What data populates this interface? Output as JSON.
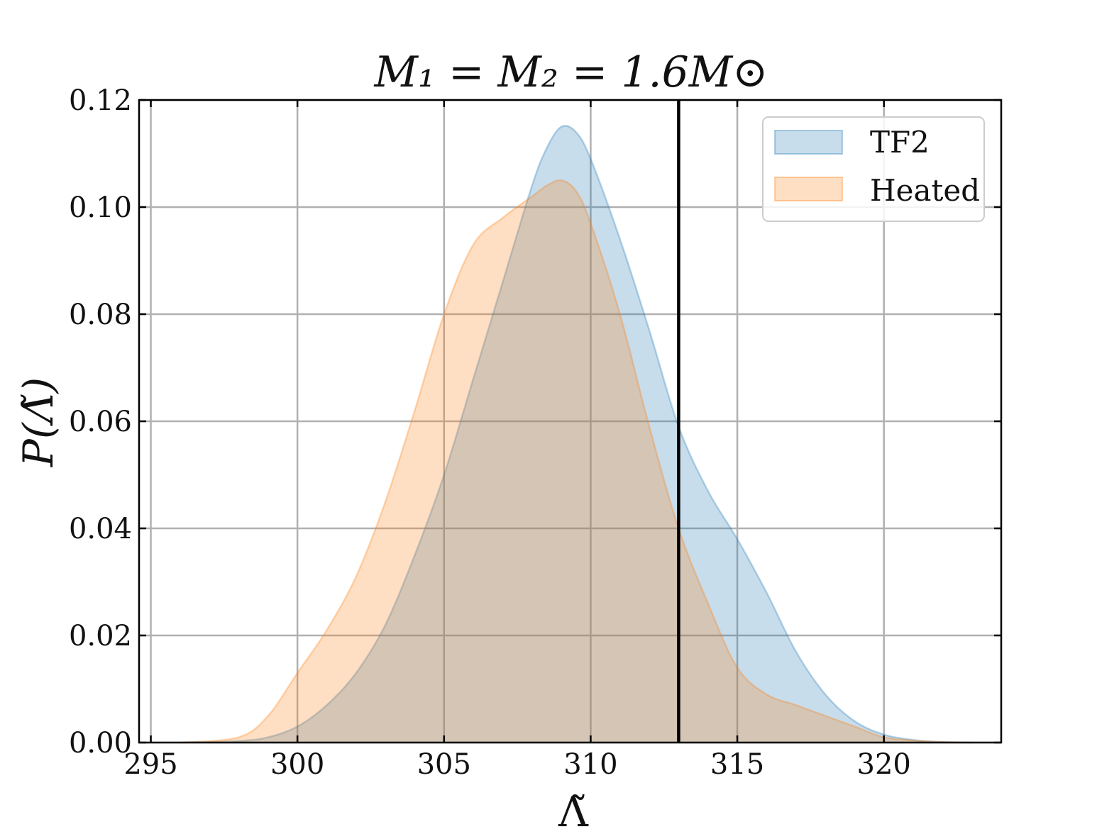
{
  "chart_data": {
    "type": "area",
    "title": "M₁ = M₂ = 1.6M⊙",
    "xlabel": "Λ̃",
    "ylabel": "P(Λ̃)",
    "xlim": [
      294.6,
      324
    ],
    "ylim": [
      0,
      0.12
    ],
    "x_ticks": [
      295,
      300,
      305,
      310,
      315,
      320
    ],
    "y_ticks": [
      0.0,
      0.02,
      0.04,
      0.06,
      0.08,
      0.1,
      0.12
    ],
    "x_tick_labels": [
      "295",
      "300",
      "305",
      "310",
      "315",
      "320"
    ],
    "y_tick_labels": [
      "0.00",
      "0.02",
      "0.04",
      "0.06",
      "0.08",
      "0.10",
      "0.12"
    ],
    "grid": true,
    "legend_position": "top-right",
    "vline": {
      "x": 313.0,
      "color": "#000000"
    },
    "series": [
      {
        "name": "TF2",
        "color": "#1f77b4",
        "x": [
          296,
          298,
          299,
          300,
          301,
          302,
          303,
          304,
          305,
          306,
          307,
          308,
          308.5,
          309,
          309.5,
          310,
          311,
          312,
          313,
          314,
          315,
          316,
          317,
          318,
          319,
          320,
          321,
          322,
          323
        ],
        "y": [
          0.0,
          0.0003,
          0.001,
          0.003,
          0.007,
          0.013,
          0.022,
          0.035,
          0.05,
          0.068,
          0.086,
          0.104,
          0.111,
          0.115,
          0.114,
          0.109,
          0.094,
          0.077,
          0.059,
          0.047,
          0.038,
          0.028,
          0.017,
          0.009,
          0.004,
          0.0015,
          0.0005,
          0.0001,
          0.0
        ]
      },
      {
        "name": "Heated",
        "color": "#ff7f0e",
        "x": [
          296,
          298,
          299,
          300,
          301,
          302,
          303,
          304,
          305,
          306,
          307,
          308,
          308.5,
          309,
          309.5,
          310,
          311,
          312,
          313,
          314,
          315,
          316,
          317,
          318,
          319,
          320,
          321,
          322,
          323
        ],
        "y": [
          0.0,
          0.001,
          0.005,
          0.013,
          0.021,
          0.031,
          0.045,
          0.062,
          0.08,
          0.093,
          0.098,
          0.102,
          0.104,
          0.105,
          0.103,
          0.097,
          0.08,
          0.059,
          0.04,
          0.026,
          0.014,
          0.009,
          0.007,
          0.005,
          0.003,
          0.001,
          0.0004,
          0.0001,
          0.0
        ]
      }
    ]
  },
  "colors": {
    "tf2_fill": "#1f77b4",
    "heated_fill": "#ff7f0e",
    "grid": "#b0b0b0",
    "axes": "#000000"
  }
}
